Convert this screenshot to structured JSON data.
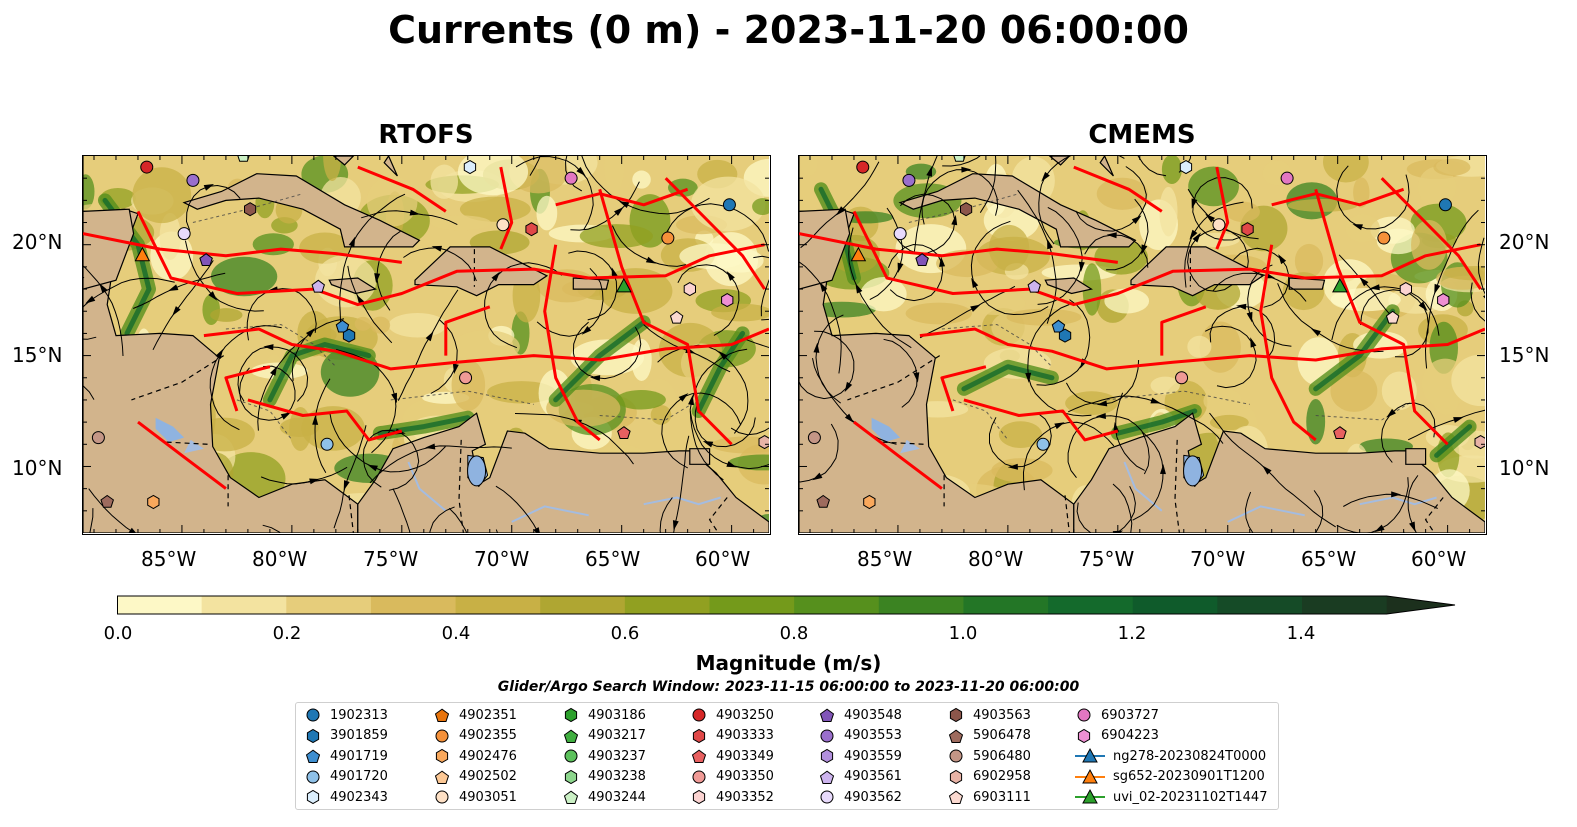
{
  "title": "Currents (0 m) - 2023-11-20 06:00:00",
  "panels": [
    {
      "title": "RTOFS"
    },
    {
      "title": "CMEMS"
    }
  ],
  "axes": {
    "lat_ticks": [
      "20°N",
      "15°N",
      "10°N"
    ],
    "lon_ticks": [
      "85°W",
      "80°W",
      "75°W",
      "70°W",
      "65°W",
      "60°W"
    ],
    "lat_range": [
      7,
      24
    ],
    "lon_range": [
      -89.5,
      -58.3
    ]
  },
  "colorbar": {
    "title": "Magnitude (m/s)",
    "ticks": [
      "0.0",
      "0.2",
      "0.4",
      "0.6",
      "0.8",
      "1.0",
      "1.2",
      "1.4"
    ],
    "range": [
      0,
      1.5
    ],
    "extend": "max",
    "colors": [
      "#fdf8c6",
      "#f3e3a0",
      "#e6cd7b",
      "#d9ba5d",
      "#c8b045",
      "#afa632",
      "#91a021",
      "#749a1b",
      "#56901d",
      "#3b8322",
      "#237626",
      "#146a2c",
      "#0f5b2b",
      "#154b27",
      "#1a3c22",
      "#1c301d"
    ]
  },
  "legend": {
    "title": "Glider/Argo Search Window: 2023-11-15 06:00:00 to 2023-11-20 06:00:00",
    "items": [
      {
        "label": "1902313",
        "marker": "circle",
        "color": "#1f77b4"
      },
      {
        "label": "3901859",
        "marker": "hexagon",
        "color": "#1f77b4"
      },
      {
        "label": "4901719",
        "marker": "pentagon",
        "color": "#3e8ed0"
      },
      {
        "label": "4901720",
        "marker": "circle",
        "color": "#8fc1e8"
      },
      {
        "label": "4902343",
        "marker": "hexagon",
        "color": "#dbeefc"
      },
      {
        "label": "4902351",
        "marker": "pentagon",
        "color": "#e8740c"
      },
      {
        "label": "4902355",
        "marker": "circle",
        "color": "#f5913a"
      },
      {
        "label": "4902476",
        "marker": "hexagon",
        "color": "#f9a85c"
      },
      {
        "label": "4902502",
        "marker": "pentagon",
        "color": "#fcc895"
      },
      {
        "label": "4903051",
        "marker": "circle",
        "color": "#fde0c5"
      },
      {
        "label": "4903186",
        "marker": "hexagon",
        "color": "#2ca02c"
      },
      {
        "label": "4903217",
        "marker": "pentagon",
        "color": "#40ae40"
      },
      {
        "label": "4903237",
        "marker": "circle",
        "color": "#5cc15c"
      },
      {
        "label": "4903238",
        "marker": "hexagon",
        "color": "#8dd68d"
      },
      {
        "label": "4903244",
        "marker": "pentagon",
        "color": "#cbf0c5"
      },
      {
        "label": "4903250",
        "marker": "circle",
        "color": "#d62728"
      },
      {
        "label": "4903333",
        "marker": "hexagon",
        "color": "#e04848"
      },
      {
        "label": "4903349",
        "marker": "pentagon",
        "color": "#e86060"
      },
      {
        "label": "4903350",
        "marker": "circle",
        "color": "#f09a96"
      },
      {
        "label": "4903352",
        "marker": "hexagon",
        "color": "#fbd3d1"
      },
      {
        "label": "4903548",
        "marker": "pentagon",
        "color": "#8155b8"
      },
      {
        "label": "4903553",
        "marker": "circle",
        "color": "#9a6fcc"
      },
      {
        "label": "4903559",
        "marker": "hexagon",
        "color": "#b290dd"
      },
      {
        "label": "4903561",
        "marker": "pentagon",
        "color": "#cdb4ee"
      },
      {
        "label": "4903562",
        "marker": "circle",
        "color": "#e8dafc"
      },
      {
        "label": "4903563",
        "marker": "hexagon",
        "color": "#8c564b"
      },
      {
        "label": "5906478",
        "marker": "pentagon",
        "color": "#9e6b5e"
      },
      {
        "label": "5906480",
        "marker": "circle",
        "color": "#c49686"
      },
      {
        "label": "6902958",
        "marker": "hexagon",
        "color": "#e8b3a6"
      },
      {
        "label": "6903111",
        "marker": "pentagon",
        "color": "#fbd9d0"
      },
      {
        "label": "6903727",
        "marker": "circle",
        "color": "#e377c2"
      },
      {
        "label": "6904223",
        "marker": "hexagon",
        "color": "#ee8fd2"
      },
      {
        "label": "ng278-20230824T0000",
        "marker": "triangle-line",
        "color": "#1f77b4"
      },
      {
        "label": "sg652-20230901T1200",
        "marker": "triangle-line",
        "color": "#ff7f0e"
      },
      {
        "label": "uvi_02-20231102T1447",
        "marker": "triangle-line",
        "color": "#2ca02c"
      }
    ]
  },
  "map_colors": {
    "land": "#d2b48c",
    "lake": "#8fb3e0",
    "river": "#a4bce0",
    "glider_track": "#ff0000",
    "streamline": "#000000"
  }
}
